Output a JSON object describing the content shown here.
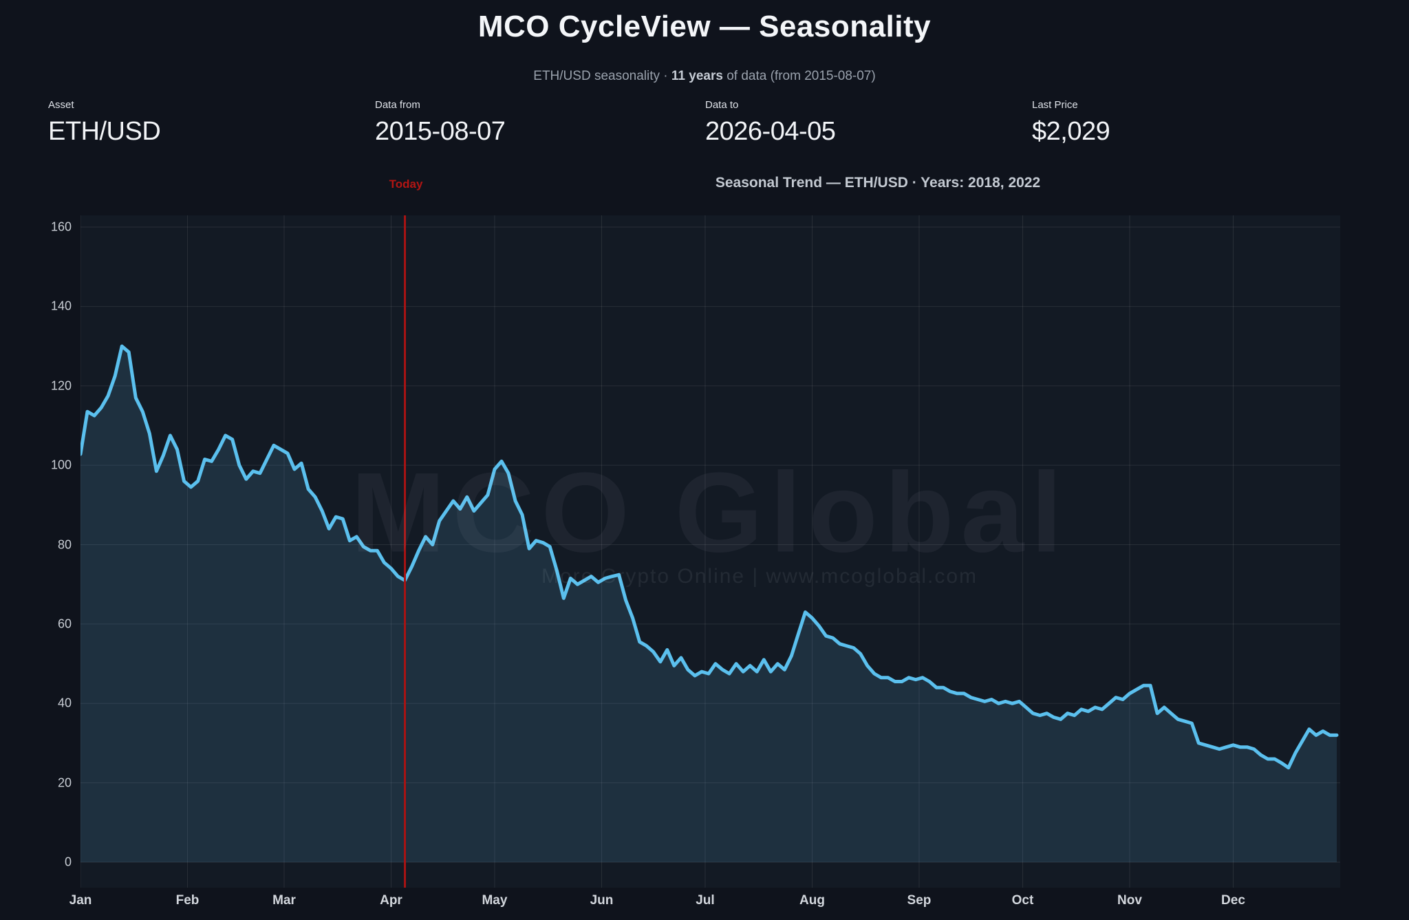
{
  "header": {
    "title": "MCO CycleView — Seasonality",
    "subtitle_prefix": "ETH/USD seasonality · ",
    "subtitle_bold": "11 years",
    "subtitle_suffix": " of data (from 2015-08-07)"
  },
  "stats": [
    {
      "label": "Asset",
      "value": "ETH/USD"
    },
    {
      "label": "Data from",
      "value": "2015-08-07"
    },
    {
      "label": "Data to",
      "value": "2026-04-05"
    },
    {
      "label": "Last Price",
      "value": "$2,029"
    }
  ],
  "chart": {
    "today_label": "Today",
    "title": "Seasonal Trend — ETH/USD · Years: 2018, 2022",
    "watermark_main": "MCO Global",
    "watermark_sub": "More Crypto Online  |  www.mcoglobal.com"
  },
  "chart_data": {
    "type": "line",
    "title": "Seasonal Trend — ETH/USD · Years: 2018, 2022",
    "xlabel": "",
    "ylabel": "",
    "x_unit": "day_of_year",
    "x_start_day": 1,
    "x_step_days": 2,
    "days_in_year": 365,
    "ylim": [
      0,
      160
    ],
    "yticks": [
      0,
      20,
      40,
      60,
      80,
      100,
      120,
      140,
      160
    ],
    "grid": "on",
    "legend_position": "none",
    "month_labels": [
      "Jan",
      "Feb",
      "Mar",
      "Apr",
      "May",
      "Jun",
      "Jul",
      "Aug",
      "Sep",
      "Oct",
      "Nov",
      "Dec"
    ],
    "month_start_days": [
      1,
      32,
      60,
      91,
      121,
      152,
      182,
      213,
      244,
      274,
      305,
      335
    ],
    "today_day": 95,
    "line_color": "#5bc0ee",
    "fill_color": "rgba(99,186,231,0.14)",
    "today_line_color": "#a81313",
    "grid_color": "rgba(255,255,255,0.09)",
    "series": [
      {
        "name": "Seasonal Trend — ETH/USD",
        "values": [
          102.8,
          113.5,
          112.5,
          114.5,
          117.5,
          122.5,
          130,
          128.5,
          117,
          113.5,
          108,
          98.5,
          102.5,
          107.5,
          104,
          96,
          94.5,
          96,
          101.5,
          101,
          104,
          107.5,
          106.5,
          100,
          96.5,
          98.5,
          98,
          101.5,
          105,
          104,
          103,
          99,
          100.5,
          94,
          92,
          88.5,
          84,
          87,
          86.5,
          81,
          82,
          79.5,
          78.5,
          78.5,
          75.5,
          74,
          72,
          71,
          74.5,
          78.5,
          82,
          80,
          86,
          88.5,
          91,
          89,
          92,
          88.5,
          90.5,
          92.5,
          99,
          101,
          98,
          91,
          87.5,
          79,
          81,
          80.5,
          79.5,
          73.5,
          66.5,
          71.5,
          70,
          71,
          72,
          70.5,
          71.5,
          72,
          72.4,
          66,
          61.5,
          55.5,
          54.5,
          53,
          50.5,
          53.5,
          49.5,
          51.5,
          48.5,
          47,
          48,
          47.5,
          50,
          48.5,
          47.5,
          50,
          48,
          49.5,
          48,
          51,
          48,
          50,
          48.5,
          52,
          57.5,
          63,
          61.5,
          59.5,
          57,
          56.5,
          55,
          54.5,
          54,
          52.5,
          49.5,
          47.5,
          46.5,
          46.5,
          45.5,
          45.5,
          46.5,
          46,
          46.5,
          45.5,
          44,
          44,
          43,
          42.5,
          42.5,
          41.5,
          41,
          40.5,
          41,
          40,
          40.5,
          40,
          40.5,
          39,
          37.5,
          37,
          37.5,
          36.5,
          36,
          37.5,
          37,
          38.5,
          38,
          39,
          38.5,
          40,
          41.5,
          41,
          42.5,
          43.5,
          44.5,
          44.5,
          37.5,
          39,
          37.5,
          36,
          35.5,
          35,
          30,
          29.5,
          29,
          28.5,
          29,
          29.5,
          29,
          29,
          28.5,
          27,
          26,
          26,
          25,
          23.8,
          27.5,
          30.5,
          33.5,
          32,
          33,
          32,
          32
        ]
      }
    ]
  }
}
